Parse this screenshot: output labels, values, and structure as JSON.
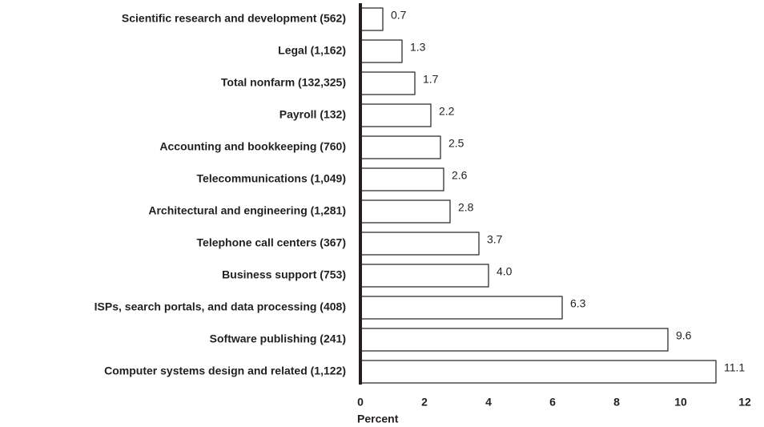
{
  "chart_data": {
    "type": "bar",
    "orientation": "horizontal",
    "categories": [
      "Scientific research and development (562)",
      "Legal (1,162)",
      "Total nonfarm (132,325)",
      "Payroll (132)",
      "Accounting and bookkeeping (760)",
      "Telecommunications (1,049)",
      "Architectural and engineering (1,281)",
      "Telephone call centers (367)",
      "Business support (753)",
      "ISPs, search portals, and data processing (408)",
      "Software publishing (241)",
      "Computer systems design and related (1,122)"
    ],
    "values": [
      0.7,
      1.3,
      1.7,
      2.2,
      2.5,
      2.6,
      2.8,
      3.7,
      4.0,
      6.3,
      9.6,
      11.1
    ],
    "value_labels": [
      "0.7",
      "1.3",
      "1.7",
      "2.2",
      "2.5",
      "2.6",
      "2.8",
      "3.7",
      "4.0",
      "6.3",
      "9.6",
      "11.1"
    ],
    "color": "#ffffff",
    "xlabel": "Percent",
    "xlim": [
      0,
      12
    ],
    "xticks": [
      0,
      2,
      4,
      6,
      8,
      10,
      12
    ],
    "grid": false
  }
}
